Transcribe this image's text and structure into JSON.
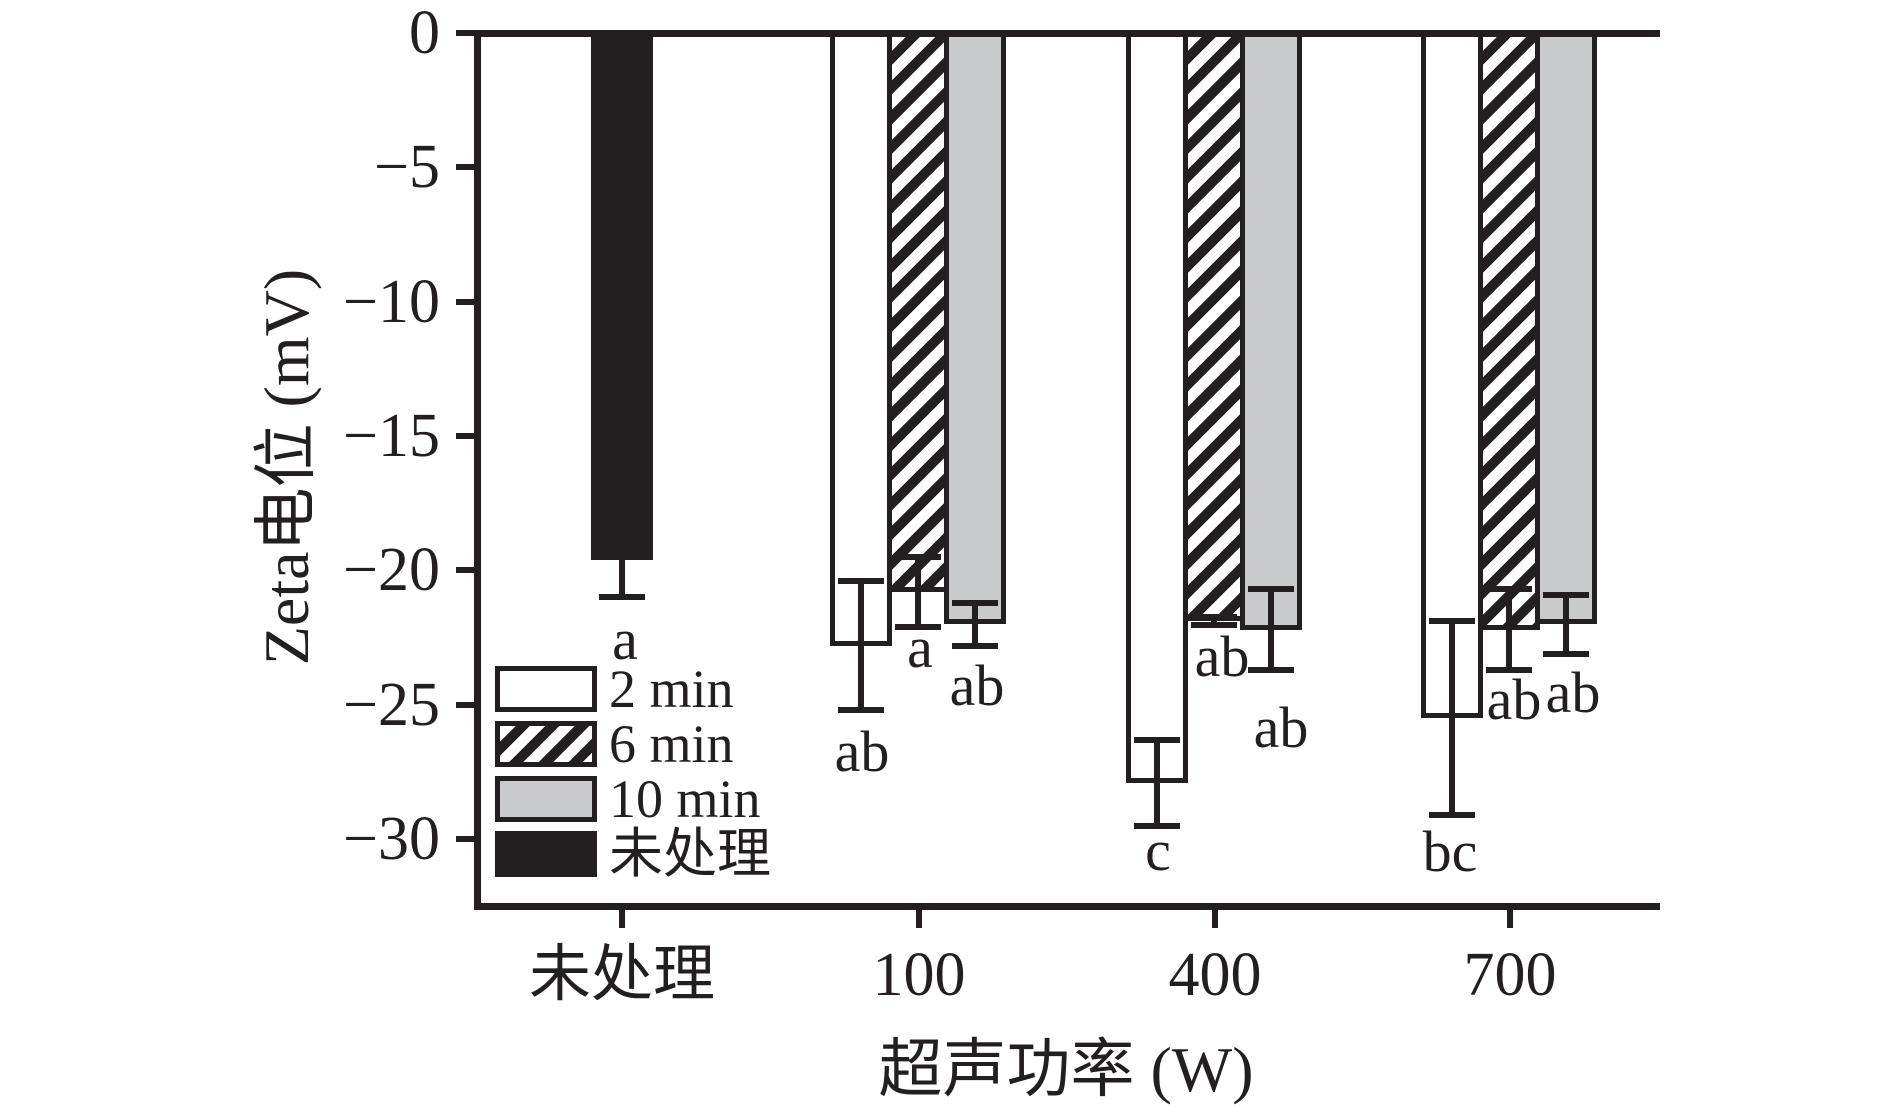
{
  "chart_data": {
    "type": "bar",
    "title": "",
    "xlabel": "超声功率 (W)",
    "ylabel": "Zeta电位 (mV)",
    "ylim": [
      -32.5,
      0
    ],
    "grid": false,
    "legend_position": "lower-left-inside",
    "yticks": [
      0,
      -5,
      -10,
      -15,
      -20,
      -25,
      -30
    ],
    "ytick_labels": [
      "0",
      "−5",
      "−10",
      "−15",
      "−20",
      "−25",
      "−30"
    ],
    "categories": [
      "未处理",
      "100",
      "400",
      "700"
    ],
    "untreated": {
      "category": "未处理",
      "value": -19.6,
      "error": 1.4,
      "sig": "a",
      "pattern": "black"
    },
    "series": [
      {
        "name": "2 min",
        "pattern": "white",
        "categories": [
          "100",
          "400",
          "700"
        ],
        "values": [
          -22.8,
          -27.9,
          -25.5
        ],
        "errors": [
          2.4,
          1.6,
          3.6
        ],
        "sig": [
          "ab",
          "c",
          "bc"
        ]
      },
      {
        "name": "6 min",
        "pattern": "hatch",
        "categories": [
          "100",
          "400",
          "700"
        ],
        "values": [
          -20.8,
          -21.9,
          -22.2
        ],
        "errors": [
          1.3,
          0.15,
          1.5
        ],
        "sig": [
          "a",
          "ab",
          "ab"
        ]
      },
      {
        "name": "10 min",
        "pattern": "gray",
        "categories": [
          "100",
          "400",
          "700"
        ],
        "values": [
          -22.0,
          -22.2,
          -22.0
        ],
        "errors": [
          0.8,
          1.5,
          1.1
        ],
        "sig": [
          "ab",
          "ab",
          "ab"
        ]
      }
    ],
    "legend": [
      {
        "label": "2 min",
        "pattern": "white"
      },
      {
        "label": "6 min",
        "pattern": "hatch"
      },
      {
        "label": "10 min",
        "pattern": "gray"
      },
      {
        "label": "未处理",
        "pattern": "black"
      }
    ],
    "colors": {
      "bar_outline": "#231f20",
      "white_fill": "#ffffff",
      "gray_fill": "#c9cacb",
      "black_fill": "#231f20",
      "background": "#ffffff"
    }
  }
}
